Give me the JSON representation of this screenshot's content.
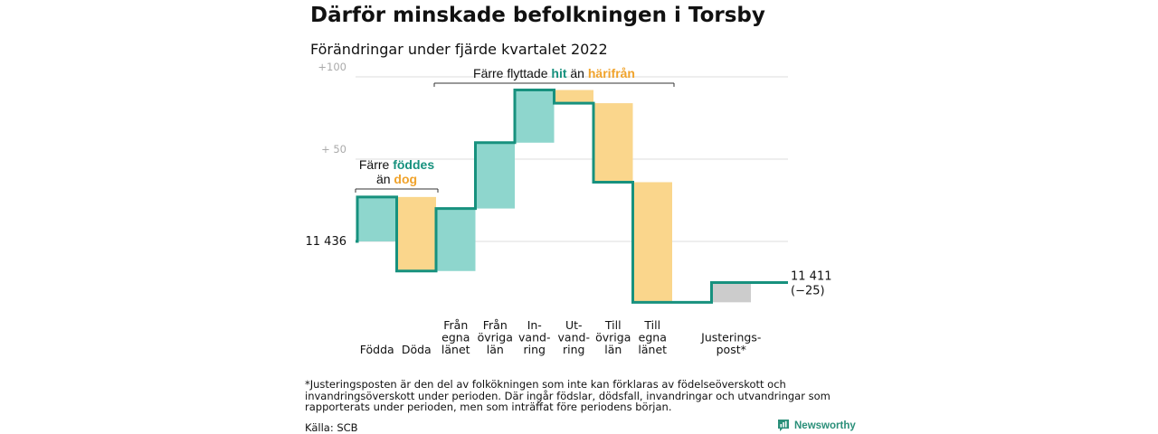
{
  "title": "Därför minskade befolkningen i Torsby",
  "subtitle": "Förändringar under fjärde kvartalet 2022",
  "chart_data": {
    "type": "waterfall",
    "start_value": 11436,
    "start_label": "11 436",
    "end_value": 11411,
    "end_label": "11 411",
    "end_change_label": "(−25)",
    "ylim": [
      -30,
      103
    ],
    "yticks": [
      {
        "value": 100,
        "label": "+100"
      },
      {
        "value": 50,
        "label": "+ 50"
      }
    ],
    "grid": true,
    "steps": [
      {
        "label_lines": [
          "Födda"
        ],
        "delta": 27,
        "color": "#8ed6cd"
      },
      {
        "label_lines": [
          "Döda"
        ],
        "delta": -45,
        "color": "#fad68c"
      },
      {
        "label_lines": [
          "Från",
          "egna",
          "länet"
        ],
        "delta": 38,
        "color": "#8ed6cd"
      },
      {
        "label_lines": [
          "Från",
          "övriga",
          "län"
        ],
        "delta": 40,
        "color": "#8ed6cd"
      },
      {
        "label_lines": [
          "In-",
          "vand-",
          "ring"
        ],
        "delta": 32,
        "color": "#8ed6cd"
      },
      {
        "label_lines": [
          "Ut-",
          "vand-",
          "ring"
        ],
        "delta": -8,
        "color": "#fad68c"
      },
      {
        "label_lines": [
          "Till",
          "övriga",
          "län"
        ],
        "delta": -48,
        "color": "#fad68c"
      },
      {
        "label_lines": [
          "Till",
          "egna",
          "länet"
        ],
        "delta": -73,
        "color": "#fad68c"
      },
      {
        "label_lines": [
          "Justerings-",
          "post*"
        ],
        "delta": 12,
        "color": "#cccccc",
        "offset": 1
      }
    ],
    "annotations": [
      {
        "lines": [
          [
            {
              "text": "Färre ",
              "style": "plain"
            },
            {
              "text": "föddes",
              "style": "teal"
            }
          ],
          [
            {
              "text": "än ",
              "style": "plain"
            },
            {
              "text": "dog",
              "style": "orange"
            }
          ]
        ],
        "span": [
          0,
          1
        ]
      },
      {
        "lines": [
          [
            {
              "text": "Färre flyttade ",
              "style": "plain"
            },
            {
              "text": "hit",
              "style": "teal"
            },
            {
              "text": " än ",
              "style": "plain"
            },
            {
              "text": "härifrån",
              "style": "orange"
            }
          ]
        ],
        "span": [
          2,
          7
        ]
      }
    ],
    "line_color": "#17917e"
  },
  "footnote": "*Justeringsposten är den del av folkökningen som inte kan förklaras av födelseöverskott och invandringsöverskott under perioden. Där ingår födslar, dödsfall, invandringar och utvandringar som rapporterats under perioden, men som inträffat före periodens början.",
  "source": "Källa: SCB",
  "brand": "Newsworthy"
}
